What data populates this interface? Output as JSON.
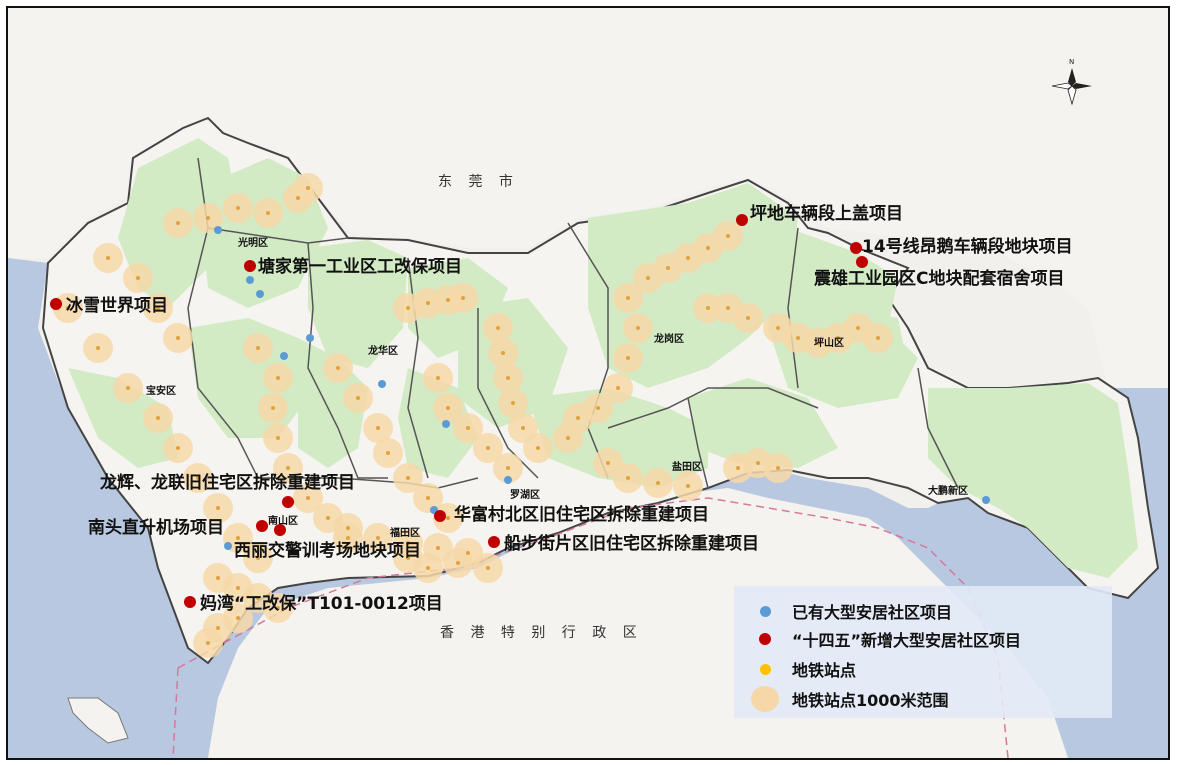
{
  "map": {
    "labels": {
      "dongguan": "东 莞 市",
      "hongkong": "香 港 特 别 行 政 区"
    },
    "districts": [
      {
        "id": "guangming",
        "name": "光明区"
      },
      {
        "id": "longhua",
        "name": "龙华区"
      },
      {
        "id": "baoan",
        "name": "宝安区"
      },
      {
        "id": "longgang",
        "name": "龙岗区"
      },
      {
        "id": "pingshan",
        "name": "坪山区"
      },
      {
        "id": "nanshan",
        "name": "南山区"
      },
      {
        "id": "futian",
        "name": "福田区"
      },
      {
        "id": "luohu",
        "name": "罗湖区"
      },
      {
        "id": "yantian",
        "name": "盐田区"
      },
      {
        "id": "dapeng",
        "name": "大鹏新区"
      }
    ],
    "projects": [
      {
        "id": "pingdi",
        "name": "坪地车辆段上盖项目",
        "type": "new"
      },
      {
        "id": "line14",
        "name": "14号线昂鹅车辆段地块项目",
        "type": "new"
      },
      {
        "id": "zhenxiong",
        "name": "震雄工业园区C地块配套宿舍项目",
        "type": "new"
      },
      {
        "id": "tangjia",
        "name": "塘家第一工业区工改保项目",
        "type": "new"
      },
      {
        "id": "icesnow",
        "name": "冰雪世界项目",
        "type": "new"
      },
      {
        "id": "longhui",
        "name": "龙辉、龙联旧住宅区拆除重建项目",
        "type": "new"
      },
      {
        "id": "nantou",
        "name": "南头直升机场项目",
        "type": "new"
      },
      {
        "id": "xili",
        "name": "西丽交警训考场地块项目",
        "type": "new"
      },
      {
        "id": "huafu",
        "name": "华富村北区旧住宅区拆除重建项目",
        "type": "new"
      },
      {
        "id": "chuanbu",
        "name": "船步街片区旧住宅区拆除重建项目",
        "type": "new"
      },
      {
        "id": "mawan",
        "name": "妈湾“工改保”T101-0012项目",
        "type": "new"
      }
    ],
    "colors": {
      "sea": "#b9c8e1",
      "land": "#f6f4f1",
      "green": "#d3ebc5",
      "existing": "#5b9bd5",
      "new": "#c00000",
      "station": "#ffc000",
      "buffer": "#f6d8a8"
    }
  },
  "compass": {
    "north": "N"
  },
  "legend": {
    "items": [
      {
        "label": "已有大型安居社区项目",
        "symbol": "existing"
      },
      {
        "label": "“十四五”新增大型安居社区项目",
        "symbol": "new"
      },
      {
        "label": "地铁站点",
        "symbol": "station"
      },
      {
        "label": "地铁站点1000米范围",
        "symbol": "buffer"
      }
    ]
  }
}
